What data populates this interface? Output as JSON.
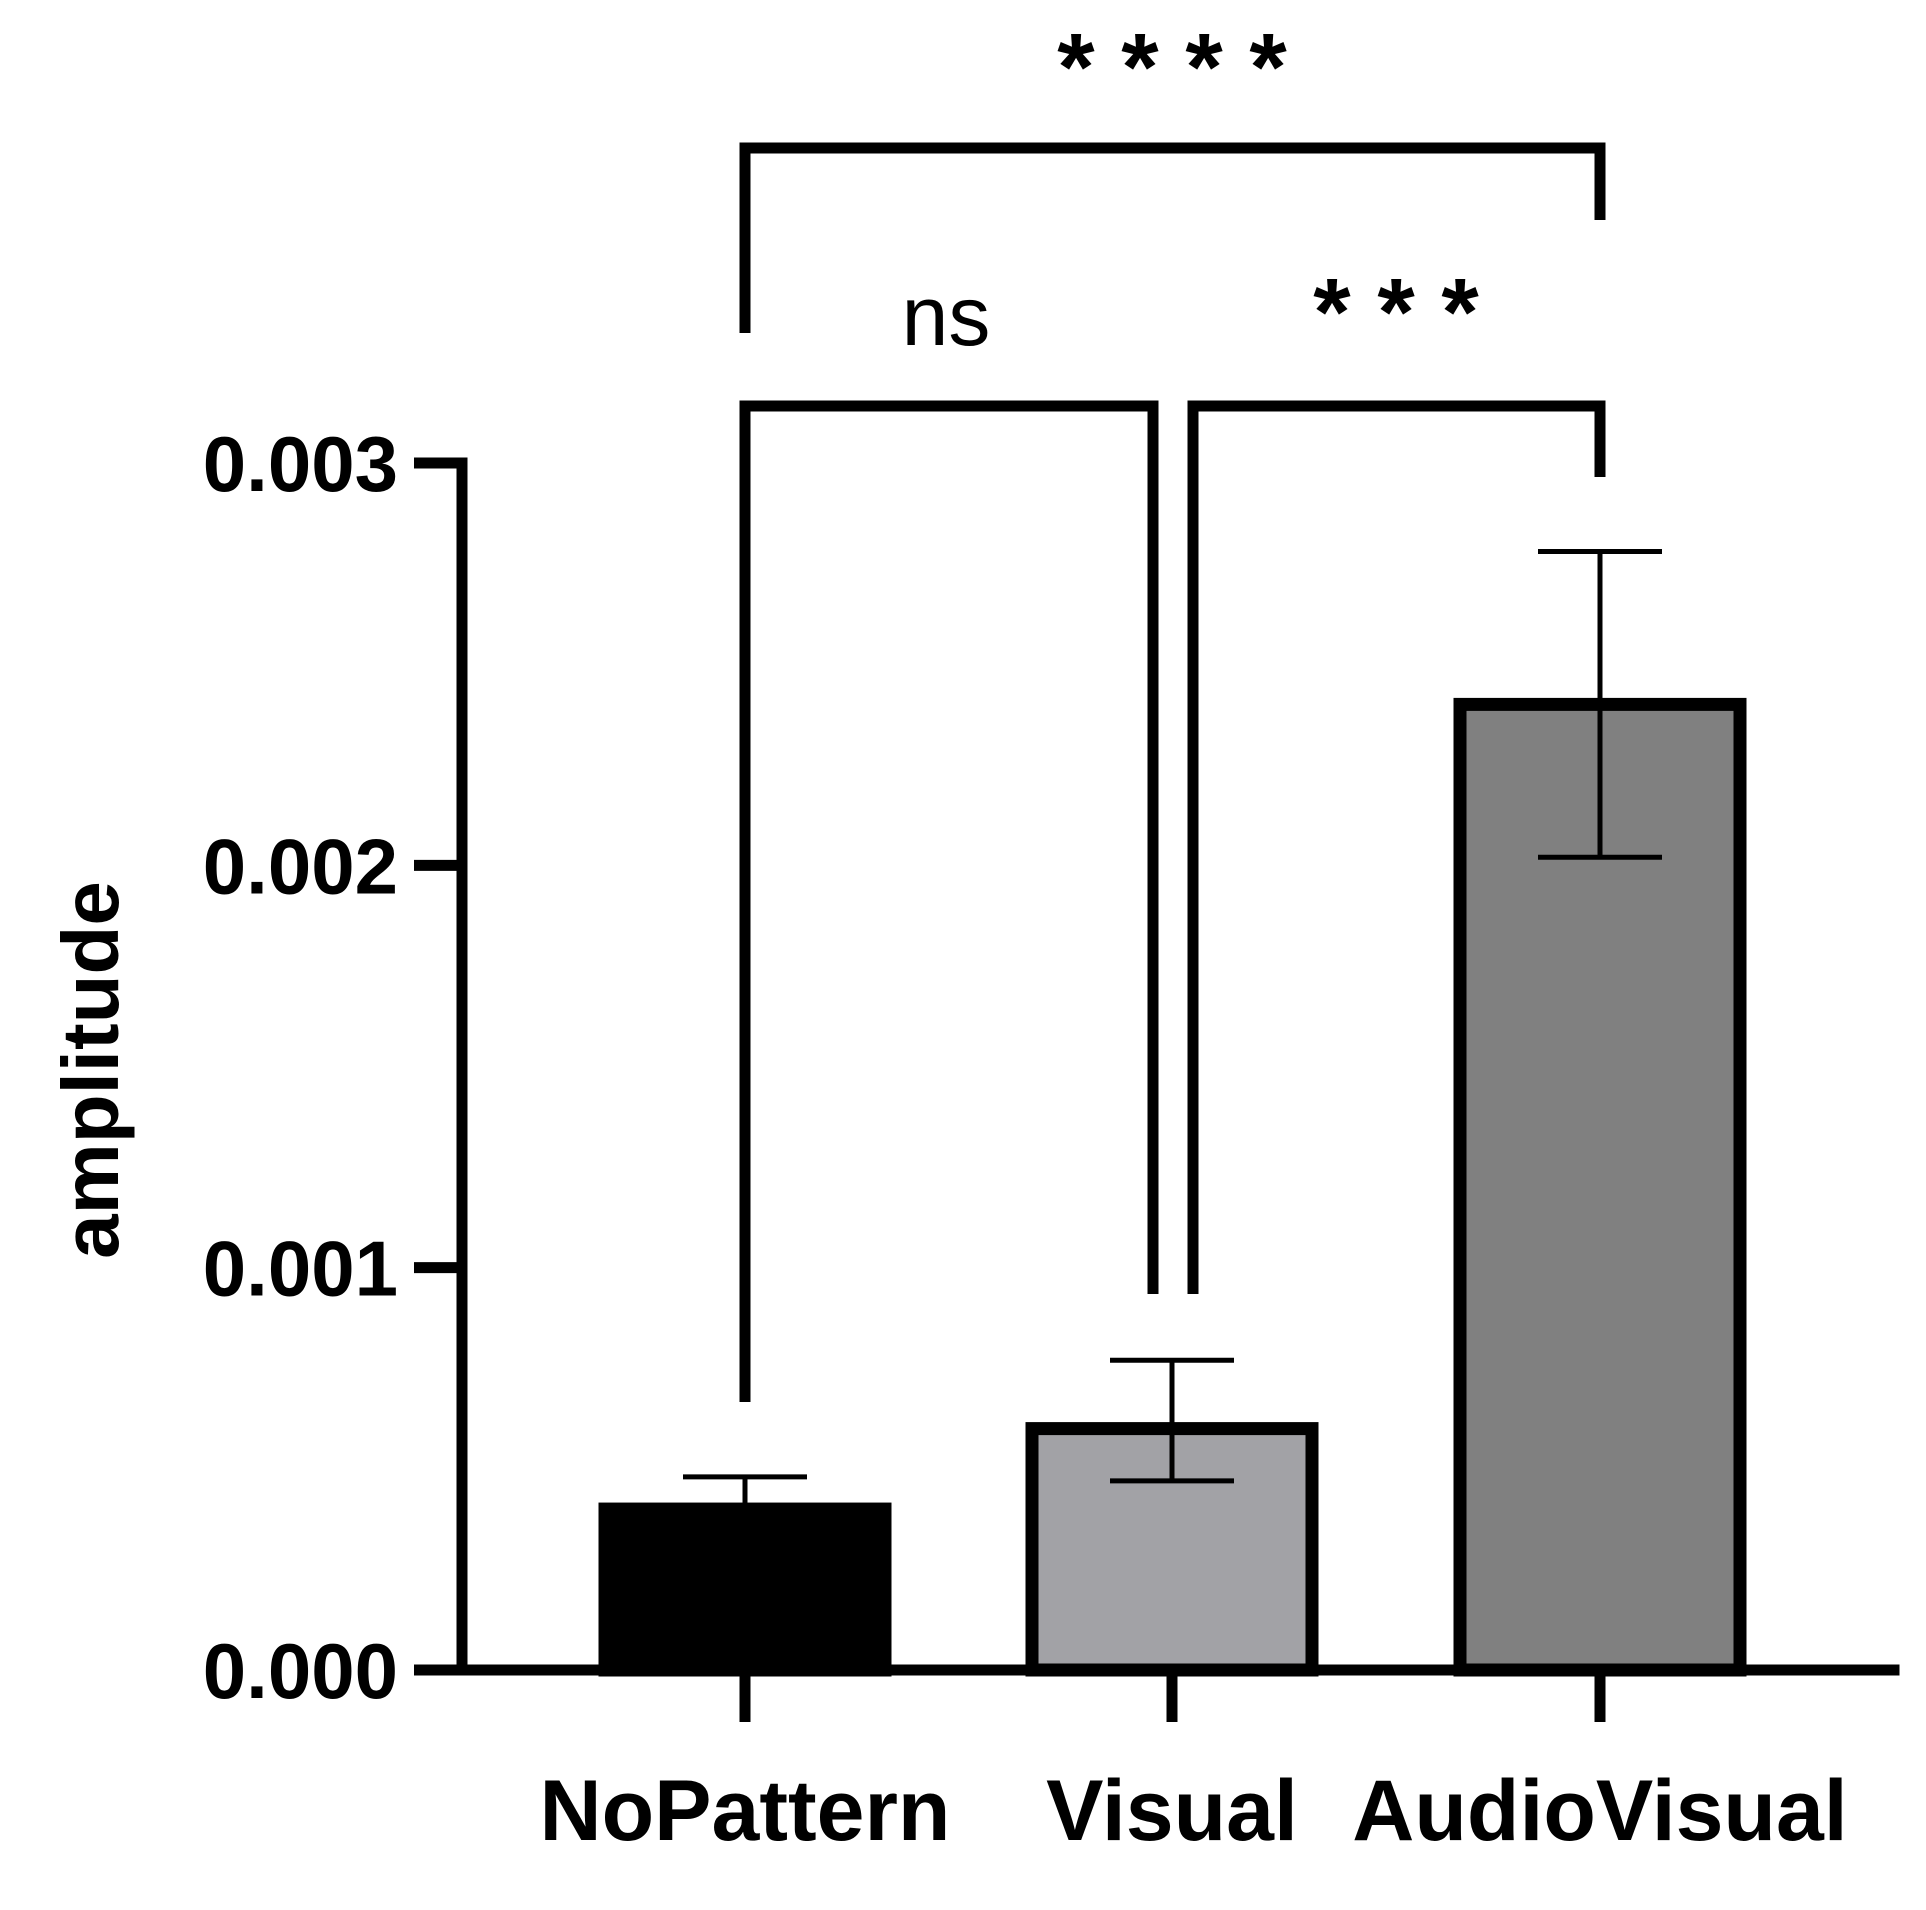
{
  "chart_data": {
    "type": "bar",
    "title": "",
    "xlabel": "",
    "ylabel": "amplitude",
    "ylim": [
      0,
      0.003
    ],
    "yticks": [
      "0.000",
      "0.001",
      "0.002",
      "0.003"
    ],
    "categories": [
      "NoPattern",
      "Visual",
      "AudioVisual"
    ],
    "values": [
      0.0004,
      0.0006,
      0.0024
    ],
    "error_upper": [
      0.00048,
      0.00077,
      0.00278
    ],
    "error_lower": [
      0.0004,
      0.00047,
      0.00202
    ],
    "colors": [
      "#000000",
      "#a2a2a6",
      "#808080"
    ],
    "grid": false,
    "legend": "none",
    "significance": [
      {
        "from": 0,
        "to": 1,
        "label": "ns",
        "level": 1
      },
      {
        "from": 1,
        "to": 2,
        "label": "* * *",
        "level": 1
      },
      {
        "from": 0,
        "to": 2,
        "label": "* * * *",
        "level": 2
      }
    ]
  }
}
